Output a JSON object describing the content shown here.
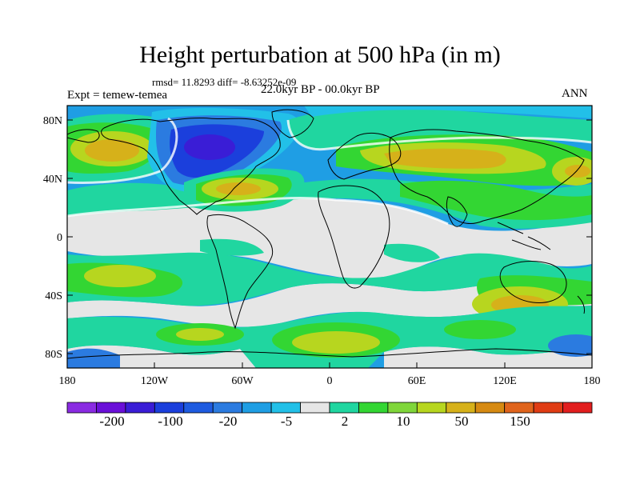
{
  "header": {
    "title": "Height perturbation at 500 hPa (in m)",
    "stats": "rmsd= 11.8293 diff= -8.63252e-09",
    "experiment": "Expt = temew-temea",
    "period": "22.0kyr BP - 00.0kyr BP",
    "season": "ANN"
  },
  "axes": {
    "y_ticks": [
      "80N",
      "40N",
      "0",
      "40S",
      "80S"
    ],
    "x_ticks": [
      "180",
      "120W",
      "60W",
      "0",
      "60E",
      "120E",
      "180"
    ]
  },
  "colorbar": {
    "colors": [
      "#8a2be2",
      "#6a0fd8",
      "#3a1dd6",
      "#1b3fdc",
      "#1e5be0",
      "#2b7be0",
      "#1f9ee4",
      "#22c0e8",
      "#e6e6e6",
      "#20d6a0",
      "#33d633",
      "#7fd63a",
      "#b7d61f",
      "#d6b11a",
      "#d68a12",
      "#e0641c",
      "#e03c14",
      "#e21e1e"
    ],
    "labels": [
      "-200",
      "-100",
      "-20",
      "-5",
      "2",
      "10",
      "50",
      "150"
    ]
  },
  "map_colors": {
    "ocean_background": "#1f9ee4",
    "neutral": "#e6e6e6",
    "cyan": "#22c0e8",
    "teal": "#20d6a0",
    "green": "#33d633",
    "lime": "#7fd63a",
    "yellow": "#b7d61f",
    "gold": "#d6b11a",
    "blue": "#2b7be0",
    "deep_blue": "#1b3fdc",
    "navy": "#3a1dd6"
  }
}
